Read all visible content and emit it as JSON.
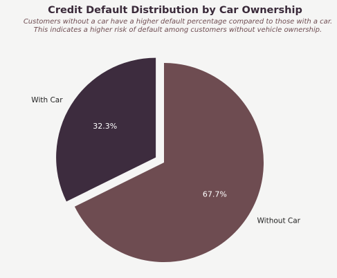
{
  "chart_data": {
    "type": "pie",
    "title": "Credit Default Distribution by Car Ownership",
    "subtitle": [
      "Customers without a car have a higher default percentage compared to those with a car.",
      "This indicates a higher risk of default among customers without vehicle ownership."
    ],
    "categories": [
      "Without Car",
      "With Car"
    ],
    "values": [
      67.7,
      32.3
    ],
    "value_labels": [
      "67.7%",
      "32.3%"
    ],
    "exploded": [
      false,
      true
    ],
    "legend": "none"
  },
  "colors": {
    "background": "#f5f5f4",
    "without_car": "#6e4c51",
    "with_car": "#3d2c3e",
    "title": "#3a2a3a",
    "subtitle": "#6e4c51",
    "category_label": "#222222",
    "pct_label": "#ffffff"
  }
}
